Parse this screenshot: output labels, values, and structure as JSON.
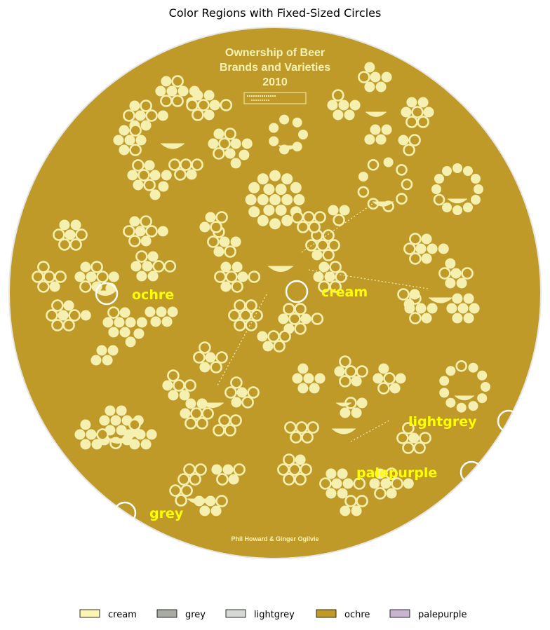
{
  "chart_data": {
    "type": "other",
    "title": "Color Regions with Fixed-Sized Circles",
    "image": {
      "title_lines": [
        "Ownership of Beer",
        "Brands and Varieties",
        "2010"
      ],
      "credit": "Phil Howard & Ginger Ogilvie"
    },
    "background_color": "#c09a28",
    "dot_color": "#f5f0b0",
    "region_label_color": "#ffff00",
    "markers": [
      {
        "label": "ochre",
        "color": "#ffff00"
      },
      {
        "label": "cream",
        "color": "#ffff00"
      },
      {
        "label": "lightgrey",
        "color": "#ffff00"
      },
      {
        "label": "palepurple",
        "color": "#ffff00"
      },
      {
        "label": "grey",
        "color": "#ffff00"
      }
    ],
    "legend": {
      "position": "bottom-center",
      "entries": [
        {
          "label": "cream",
          "color": "#fbf4b2"
        },
        {
          "label": "grey",
          "color": "#a8aaa4"
        },
        {
          "label": "lightgrey",
          "color": "#d6d8d6"
        },
        {
          "label": "ochre",
          "color": "#bf9a29"
        },
        {
          "label": "palepurple",
          "color": "#c8b4d0"
        }
      ]
    }
  }
}
